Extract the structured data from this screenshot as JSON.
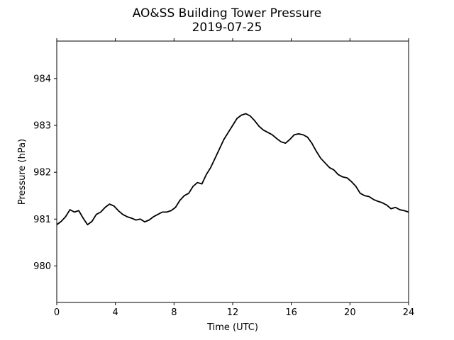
{
  "chart_data": {
    "type": "line",
    "title": "AO&SS Building Tower Pressure",
    "subtitle": "2019-07-25",
    "xlabel": "Time (UTC)",
    "ylabel": "Pressure (hPa)",
    "xlim": [
      0,
      24
    ],
    "ylim": [
      979.22,
      984.8
    ],
    "xticks": [
      0,
      4,
      8,
      12,
      16,
      20,
      24
    ],
    "yticks": [
      980,
      981,
      982,
      983,
      984
    ],
    "grid": false,
    "line_color": "#000000",
    "series": [
      {
        "x": [
          0,
          0.3,
          0.6,
          0.9,
          1.2,
          1.5,
          1.8,
          2.1,
          2.4,
          2.7,
          3.0,
          3.3,
          3.6,
          3.9,
          4.2,
          4.5,
          4.8,
          5.1,
          5.4,
          5.7,
          6.0,
          6.3,
          6.6,
          6.9,
          7.2,
          7.5,
          7.8,
          8.1,
          8.4,
          8.7,
          9.0,
          9.3,
          9.6,
          9.9,
          10.2,
          10.5,
          10.8,
          11.1,
          11.4,
          11.7,
          12.0,
          12.3,
          12.6,
          12.9,
          13.2,
          13.5,
          13.8,
          14.1,
          14.4,
          14.7,
          15.0,
          15.3,
          15.6,
          15.9,
          16.2,
          16.5,
          16.8,
          17.1,
          17.4,
          17.7,
          18.0,
          18.3,
          18.6,
          18.9,
          19.2,
          19.5,
          19.8,
          20.1,
          20.4,
          20.7,
          21.0,
          21.3,
          21.6,
          21.9,
          22.2,
          22.5,
          22.8,
          23.1,
          23.4,
          23.7,
          24.0
        ],
        "y": [
          980.88,
          980.95,
          981.05,
          981.2,
          981.15,
          981.18,
          981.02,
          980.88,
          980.95,
          981.1,
          981.15,
          981.25,
          981.32,
          981.28,
          981.18,
          981.1,
          981.05,
          981.02,
          980.98,
          981.0,
          980.94,
          980.98,
          981.05,
          981.1,
          981.15,
          981.15,
          981.18,
          981.25,
          981.4,
          981.5,
          981.55,
          981.7,
          981.78,
          981.75,
          981.95,
          982.1,
          982.3,
          982.5,
          982.7,
          982.85,
          983.0,
          983.15,
          983.22,
          983.25,
          983.2,
          983.1,
          982.98,
          982.9,
          982.85,
          982.8,
          982.72,
          982.65,
          982.62,
          982.7,
          982.8,
          982.82,
          982.8,
          982.75,
          982.62,
          982.45,
          982.3,
          982.2,
          982.1,
          982.05,
          981.95,
          981.9,
          981.88,
          981.8,
          981.7,
          981.55,
          981.5,
          981.48,
          981.42,
          981.38,
          981.35,
          981.3,
          981.22,
          981.25,
          981.2,
          981.18,
          981.15
        ]
      }
    ]
  }
}
